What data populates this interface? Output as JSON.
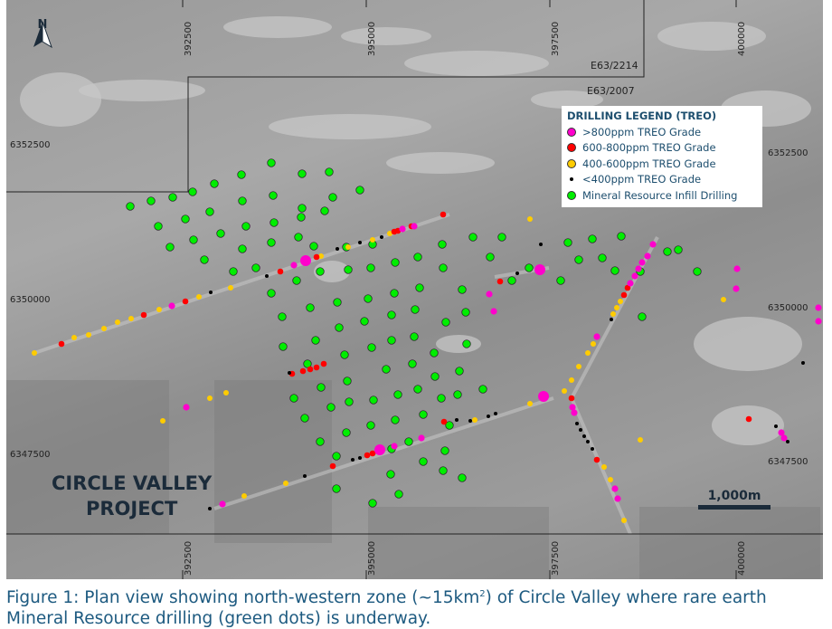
{
  "north_label": "N",
  "tenements": {
    "outer": "E63/2214",
    "inner": "E63/2007"
  },
  "eastings": [
    "392500",
    "395000",
    "397500",
    "400000"
  ],
  "northings": [
    "6352500",
    "6350000",
    "6347500"
  ],
  "legend": {
    "title": "DRILLING LEGEND (TREO)",
    "items": [
      {
        "label": ">800ppm TREO Grade",
        "color": "#ff00cc"
      },
      {
        "label": "600-800ppm TREO Grade",
        "color": "#ff0000"
      },
      {
        "label": "400-600ppm TREO Grade",
        "color": "#ffcc00"
      },
      {
        "label": "<400ppm TREO Grade",
        "color": "#000000"
      },
      {
        "label": "Mineral Resource Infill Drilling",
        "color": "#00ee00"
      }
    ]
  },
  "project_name": {
    "line1": "CIRCLE VALLEY",
    "line2": "PROJECT"
  },
  "scale_bar": "1,000m",
  "caption": {
    "line1": "Figure 1: Plan view showing north-western zone (~15km",
    "sup": "2",
    "line1_end": ") of Circle Valley where rare earth",
    "line2": "Mineral Resource drilling (green dots) is underway."
  }
}
